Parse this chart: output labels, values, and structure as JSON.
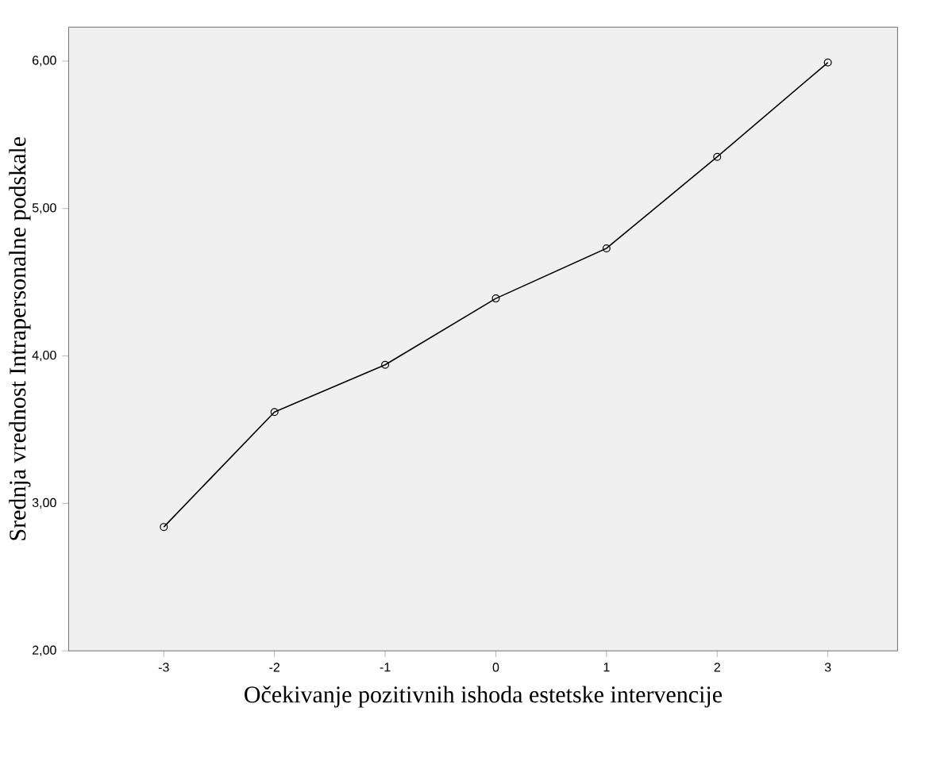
{
  "chart_data": {
    "type": "line",
    "xlabel": "Očekivanje pozitivnih ishoda estetske intervencije",
    "ylabel": "Srednja vrednost Intrapersonalne podskale",
    "x": [
      -3,
      -2,
      -1,
      0,
      1,
      2,
      3
    ],
    "series": [
      {
        "color": "#000000",
        "values": [
          2.84,
          3.62,
          3.94,
          4.39,
          4.73,
          5.35,
          5.99
        ]
      }
    ],
    "xlim": [
      -3.86,
      3.63
    ],
    "ylim": [
      2,
      6.23
    ],
    "xticks": [
      -3,
      -2,
      -1,
      0,
      1,
      2,
      3
    ],
    "yticks": [
      {
        "value": 2,
        "label": "2,00"
      },
      {
        "value": 3,
        "label": "3,00"
      },
      {
        "value": 4,
        "label": "4,00"
      },
      {
        "value": 5,
        "label": "5,00"
      },
      {
        "value": 6,
        "label": "6,00"
      }
    ],
    "marker": "circle",
    "line_style": "solid"
  }
}
